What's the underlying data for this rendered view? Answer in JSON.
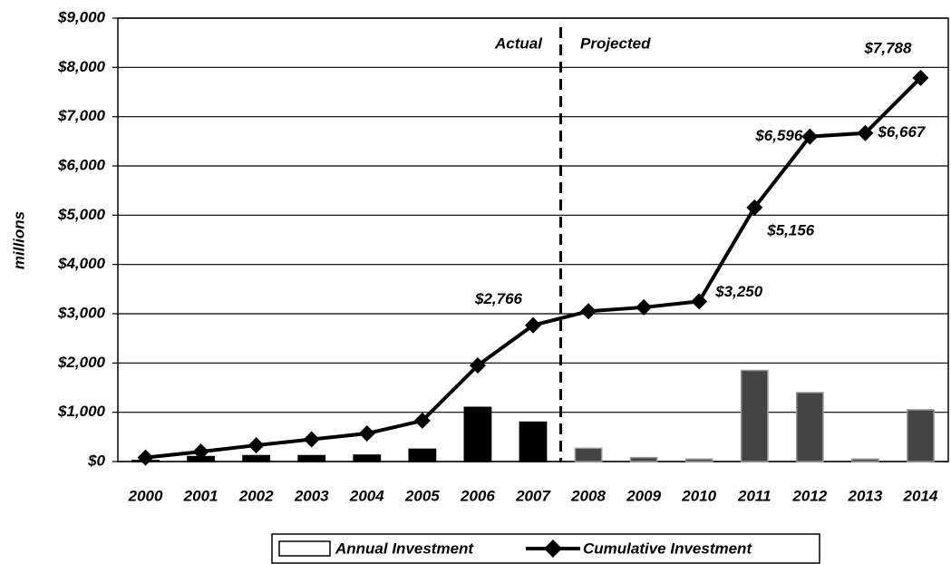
{
  "chart_data": {
    "type": "bar-line",
    "ylabel": "millions",
    "annotations": [
      "Actual",
      "Projected"
    ],
    "categories": [
      "2000",
      "2001",
      "2002",
      "2003",
      "2004",
      "2005",
      "2006",
      "2007",
      "2008",
      "2009",
      "2010",
      "2011",
      "2012",
      "2013",
      "2014"
    ],
    "series": [
      {
        "name": "Annual Investment",
        "type": "bar",
        "colors": [
          "#000",
          "#000",
          "#000",
          "#000",
          "#000",
          "#000",
          "#000",
          "#000",
          "#444",
          "#444",
          "#444",
          "#444",
          "#444",
          "#444",
          "#444"
        ],
        "values": [
          20,
          100,
          120,
          120,
          130,
          250,
          1100,
          800,
          270,
          80,
          50,
          1850,
          1400,
          50,
          1050
        ]
      },
      {
        "name": "Cumulative Investment",
        "type": "line",
        "color": "#000",
        "values": [
          80,
          200,
          330,
          450,
          570,
          830,
          1950,
          2766,
          3050,
          3130,
          3250,
          5156,
          6596,
          6667,
          7788
        ],
        "value_labels": [
          null,
          null,
          null,
          null,
          null,
          null,
          null,
          "$2,766",
          null,
          null,
          "$3,250",
          "$5,156",
          "$6,596",
          "$6,667",
          "$7,788"
        ]
      }
    ],
    "ylim": [
      0,
      9000
    ],
    "yticks": [
      {
        "value": 0,
        "label": "$0"
      },
      {
        "value": 1000,
        "label": "$1,000"
      },
      {
        "value": 2000,
        "label": "$2,000"
      },
      {
        "value": 3000,
        "label": "$3,000"
      },
      {
        "value": 4000,
        "label": "$4,000"
      },
      {
        "value": 5000,
        "label": "$5,000"
      },
      {
        "value": 6000,
        "label": "$6,000"
      },
      {
        "value": 7000,
        "label": "$7,000"
      },
      {
        "value": 8000,
        "label": "$8,000"
      },
      {
        "value": 9000,
        "label": "$9,000"
      }
    ],
    "grid": true,
    "legend": "bottom"
  }
}
